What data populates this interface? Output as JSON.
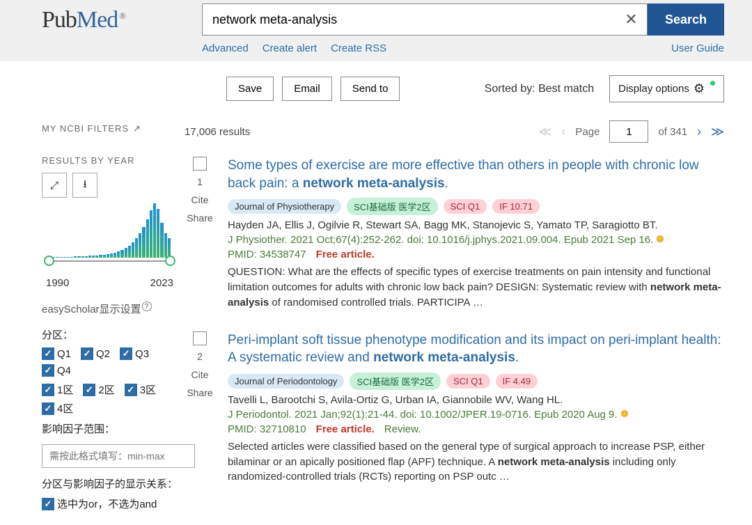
{
  "header": {
    "logo_pub": "Pub",
    "logo_med": "Med",
    "logo_reg": "®",
    "search_value": "network meta-analysis",
    "search_btn": "Search",
    "advanced": "Advanced",
    "create_alert": "Create alert",
    "create_rss": "Create RSS",
    "user_guide": "User Guide"
  },
  "toolbar": {
    "save": "Save",
    "email": "Email",
    "send_to": "Send to",
    "sorted_by": "Sorted by: Best match",
    "display_options": "Display options"
  },
  "sidebar": {
    "my_filters": "MY NCBI FILTERS",
    "results_by_year": "RESULTS BY YEAR",
    "year_from": "1990",
    "year_to": "2023",
    "histogram_values": [
      1,
      1,
      1,
      1,
      1,
      1,
      1,
      2,
      2,
      2,
      2,
      3,
      3,
      3,
      4,
      4,
      5,
      6,
      7,
      9,
      11,
      14,
      17,
      22,
      28,
      35,
      44,
      55,
      68,
      78,
      70,
      50,
      35,
      28
    ],
    "bar_color_top": "#1e90d4",
    "bar_color_bottom": "#3cb371",
    "easyscholar": "easyScholar显示设置",
    "partition_label": "分区：",
    "q_items": [
      "Q1",
      "Q2",
      "Q3",
      "Q4"
    ],
    "zone_items": [
      "1区",
      "2区",
      "3区",
      "4区"
    ],
    "if_label": "影响因子范围：",
    "if_placeholder": "需按此格式填写：min-max",
    "relation_label": "分区与影响因子的显示关系：",
    "relation_option": "选中为or，不选为and"
  },
  "results": {
    "count": "17,006 results",
    "page_label": "Page",
    "page_val": "1",
    "total_pages": "of 341",
    "items": [
      {
        "num": "1",
        "title_pre": "Some types of exercise are more effective than others in people with chronic low back pain: a ",
        "title_bold": "network meta-analysis",
        "title_post": ".",
        "journal": "Journal of Physiotherapy",
        "sci": "SCI基础版 医学2区",
        "sciq": "SCI Q1",
        "if": "IF 10.71",
        "authors": "Hayden JA, Ellis J, Ogilvie R, Stewart SA, Bagg MK, Stanojevic S, Yamato TP, Saragiotto BT.",
        "citation": "J Physiother. 2021 Oct;67(4):252-262. doi: 10.1016/j.jphys.2021.09.004. Epub 2021 Sep 16.",
        "pmid": "PMID: 34538747",
        "free": "Free article.",
        "review": "",
        "snippet_pre": "QUESTION: What are the effects of specific types of exercise treatments on pain intensity and functional limitation outcomes for adults with chronic low back pain? DESIGN: Systematic review with ",
        "snippet_b1": "network meta-analysis",
        "snippet_post": " of randomised controlled trials. PARTICIPA …"
      },
      {
        "num": "2",
        "title_pre": "Peri-implant soft tissue phenotype modification and its impact on peri-implant health: A systematic review and ",
        "title_bold": "network meta-analysis",
        "title_post": ".",
        "journal": "Journal of Periodontology",
        "sci": "SCI基础版 医学2区",
        "sciq": "SCI Q1",
        "if": "IF 4.49",
        "authors": "Tavelli L, Barootchi S, Avila-Ortiz G, Urban IA, Giannobile WV, Wang HL.",
        "citation": "J Periodontol. 2021 Jan;92(1):21-44. doi: 10.1002/JPER.19-0716. Epub 2020 Aug 9.",
        "pmid": "PMID: 32710810",
        "free": "Free article.",
        "review": "Review.",
        "snippet_pre": "Selected articles were classified based on the general type of surgical approach to increase PSP, either bilaminar or an apically positioned flap (APF) technique. A ",
        "snippet_b1": "network meta-analysis",
        "snippet_post": " including only randomized-controlled trials (RCTs) reporting on PSP outc …"
      }
    ]
  }
}
